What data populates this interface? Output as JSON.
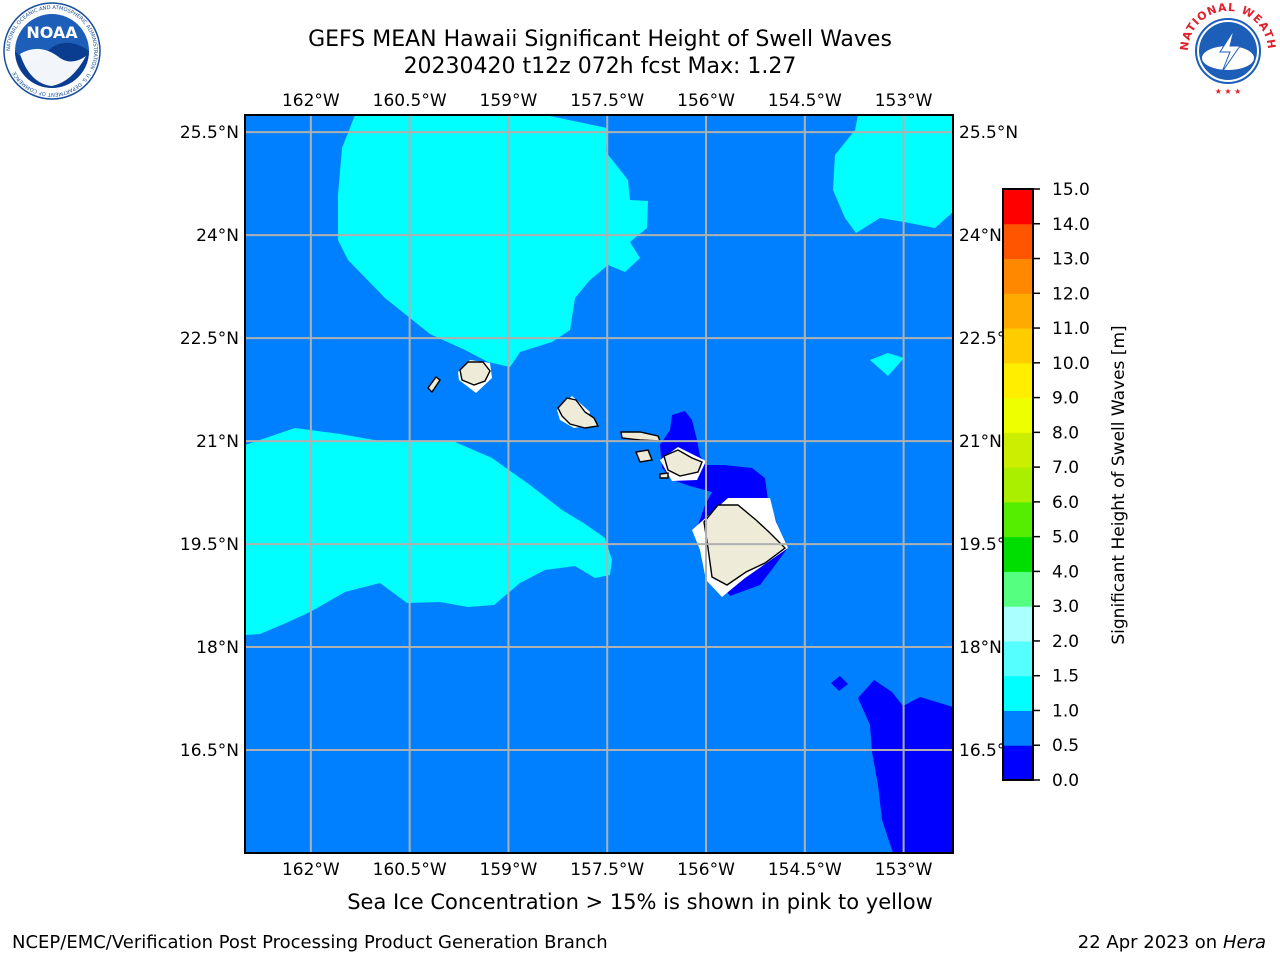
{
  "header": {
    "title_line1": "GEFS MEAN Hawaii Significant Height of Swell Waves",
    "title_line2": "20230420 t12z 072h fcst   Max: 1.27",
    "left_logo_text": "NOAA",
    "left_logo_ring": "NATIONAL OCEANIC AND ATMOSPHERIC ADMINISTRATION · U.S. DEPARTMENT OF COMMERCE",
    "right_logo_ring": "NATIONAL WEATHER SERVICE"
  },
  "map": {
    "lon_labels": [
      "162°W",
      "160.5°W",
      "159°W",
      "157.5°W",
      "156°W",
      "154.5°W",
      "153°W"
    ],
    "lat_labels": [
      "25.5°N",
      "24°N",
      "22.5°N",
      "21°N",
      "19.5°N",
      "18°N",
      "16.5°N"
    ],
    "lon_values": [
      -162,
      -160.5,
      -159,
      -157.5,
      -156,
      -154.5,
      -153
    ],
    "lat_values": [
      25.5,
      24,
      22.5,
      21,
      19.5,
      18,
      16.5
    ],
    "extent": {
      "lon_min": -163,
      "lon_max": -152.25,
      "lat_min": 15,
      "lat_max": 25.75
    },
    "background_color": "#0080ff",
    "land_color": "#eeecd9"
  },
  "colorbar": {
    "label": "Significant Height of Swell Waves [m]",
    "ticks": [
      "0.0",
      "0.5",
      "1.0",
      "1.5",
      "2.0",
      "3.0",
      "4.0",
      "5.0",
      "6.0",
      "7.0",
      "8.0",
      "9.0",
      "10.0",
      "11.0",
      "12.0",
      "13.0",
      "14.0",
      "15.0"
    ],
    "colors": [
      "#0000ff",
      "#0080ff",
      "#00ffff",
      "#55ffff",
      "#aaffff",
      "#55ff80",
      "#00dd00",
      "#55ee00",
      "#aaee00",
      "#ccee00",
      "#eeff00",
      "#ffee00",
      "#ffcc00",
      "#ffaa00",
      "#ff8800",
      "#ff5500",
      "#ff0000"
    ]
  },
  "footer": {
    "note": "Sea Ice Concentration > 15% is shown in pink to yellow",
    "left": "NCEP/EMC/Verification Post Processing Product Generation Branch",
    "right_date": "22 Apr 2023 on ",
    "right_host": "Hera"
  }
}
